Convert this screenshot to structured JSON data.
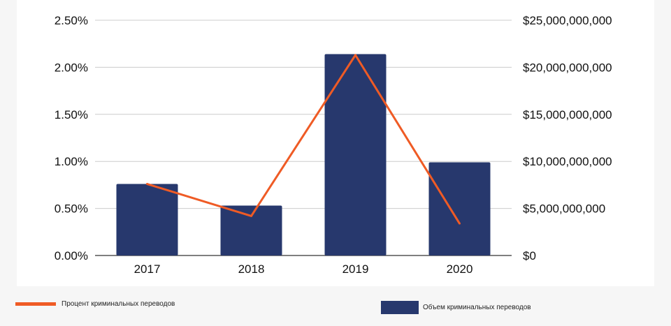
{
  "chart_data": {
    "type": "bar",
    "categories": [
      "2017",
      "2018",
      "2019",
      "2020"
    ],
    "series": [
      {
        "name": "Объем криминальных переводов",
        "type": "bar",
        "axis": "right",
        "color": "#27386d",
        "values": [
          7600000000,
          5300000000,
          21400000000,
          9900000000
        ]
      },
      {
        "name": "Процент криминальных переводов",
        "type": "line",
        "axis": "left",
        "color": "#ef5b25",
        "values": [
          0.76,
          0.42,
          2.13,
          0.34
        ]
      }
    ],
    "left_axis": {
      "ylim": [
        0,
        2.5
      ],
      "ticks": [
        0,
        0.5,
        1,
        1.5,
        2,
        2.5
      ],
      "tick_labels": [
        "0.00%",
        "0.50%",
        "1.00%",
        "1.50%",
        "2.00%",
        "2.50%"
      ]
    },
    "right_axis": {
      "ylim": [
        0,
        25000000000
      ],
      "ticks": [
        0,
        5000000000,
        10000000000,
        15000000000,
        20000000000,
        25000000000
      ],
      "tick_labels": [
        "$0",
        "$5,000,000,000",
        "$10,000,000,000",
        "$15,000,000,000",
        "$20,000,000,000",
        "$25,000,000,000"
      ]
    },
    "grid": true,
    "legend_position": "bottom"
  },
  "legend": {
    "line_label": "Процент криминальных переводов",
    "bar_label": "Объем криминальных переводов"
  },
  "colors": {
    "bar": "#27386d",
    "line": "#ef5b25",
    "grid": "#cccccc",
    "background": "#f6f6f6"
  }
}
